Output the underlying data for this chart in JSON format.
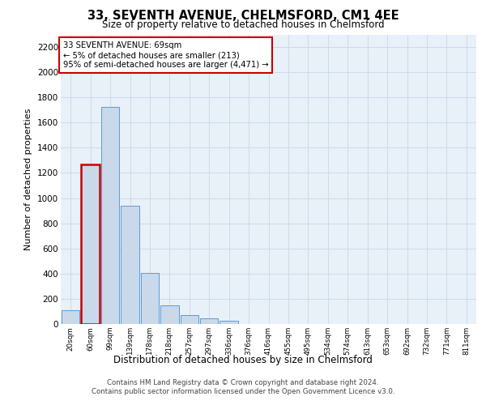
{
  "title_line1": "33, SEVENTH AVENUE, CHELMSFORD, CM1 4EE",
  "title_line2": "Size of property relative to detached houses in Chelmsford",
  "xlabel": "Distribution of detached houses by size in Chelmsford",
  "ylabel": "Number of detached properties",
  "footnote": "Contains HM Land Registry data © Crown copyright and database right 2024.\nContains public sector information licensed under the Open Government Licence v3.0.",
  "annotation_title": "33 SEVENTH AVENUE: 69sqm",
  "annotation_line2": "← 5% of detached houses are smaller (213)",
  "annotation_line3": "95% of semi-detached houses are larger (4,471) →",
  "bar_labels": [
    "20sqm",
    "60sqm",
    "99sqm",
    "139sqm",
    "178sqm",
    "218sqm",
    "257sqm",
    "297sqm",
    "336sqm",
    "376sqm",
    "416sqm",
    "455sqm",
    "495sqm",
    "534sqm",
    "574sqm",
    "613sqm",
    "653sqm",
    "692sqm",
    "732sqm",
    "771sqm",
    "811sqm"
  ],
  "bar_values": [
    107,
    1265,
    1725,
    940,
    405,
    150,
    70,
    42,
    24,
    0,
    0,
    0,
    0,
    0,
    0,
    0,
    0,
    0,
    0,
    0,
    0
  ],
  "bar_color": "#c9d9ea",
  "bar_edge_color": "#5b9bd5",
  "highlight_bar_index": 1,
  "highlight_bar_edge_color": "#cc0000",
  "annotation_box_edge_color": "#cc0000",
  "grid_color": "#c8d8e8",
  "background_color": "#e8f0f8",
  "ylim": [
    0,
    2300
  ],
  "yticks": [
    0,
    200,
    400,
    600,
    800,
    1000,
    1200,
    1400,
    1600,
    1800,
    2000,
    2200
  ]
}
